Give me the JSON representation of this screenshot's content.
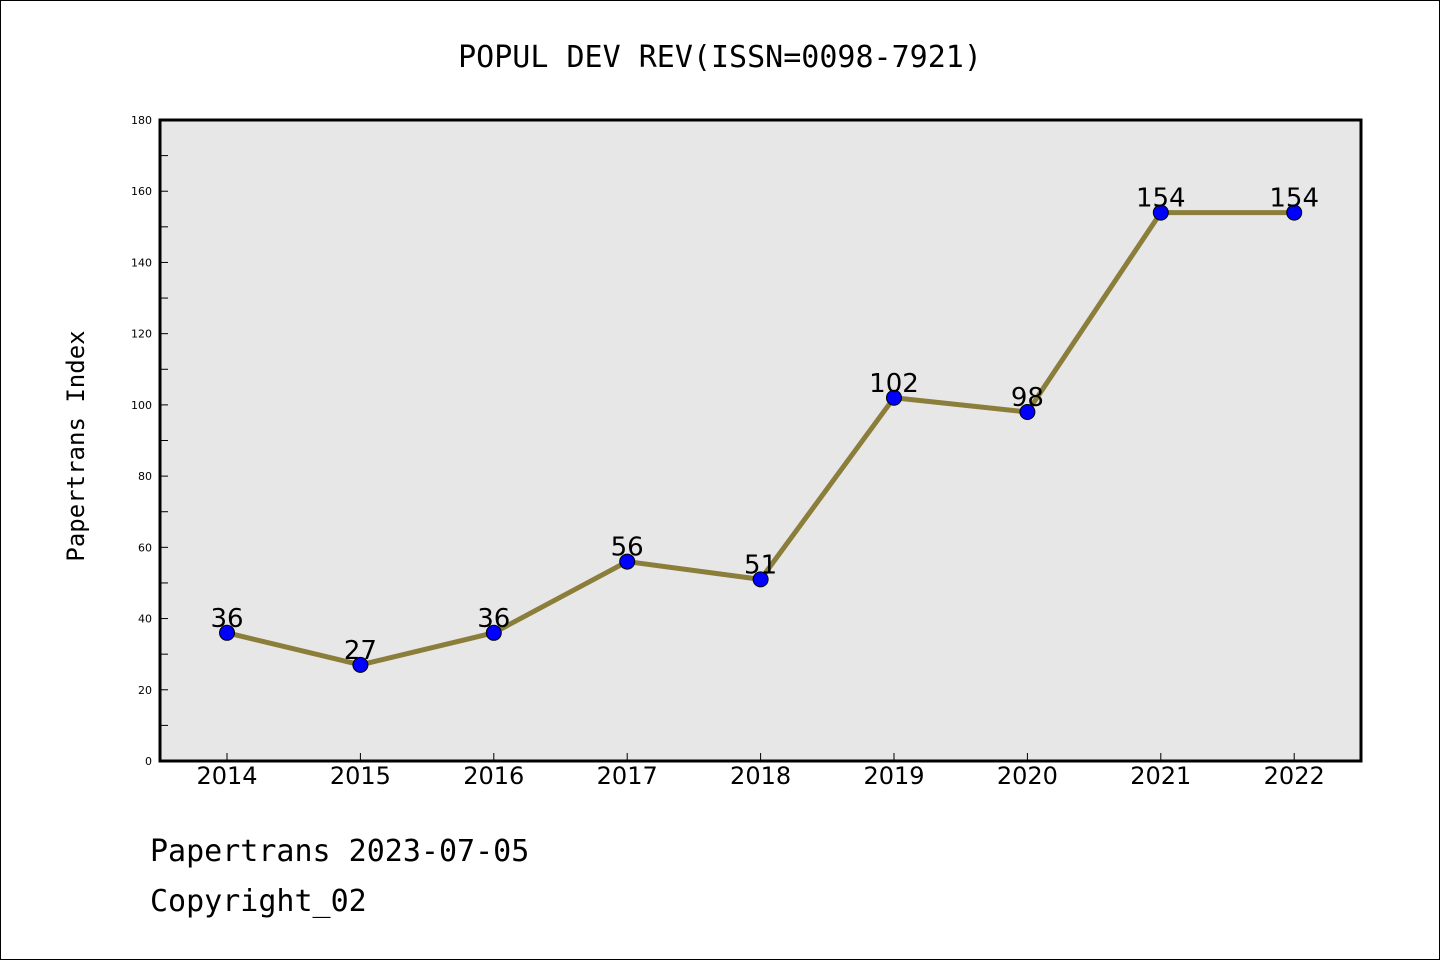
{
  "chart_data": {
    "type": "line",
    "title": "POPUL DEV REV(ISSN=0098-7921)",
    "xlabel": "",
    "ylabel": "Papertrans Index",
    "x": [
      "2014",
      "2015",
      "2016",
      "2017",
      "2018",
      "2019",
      "2020",
      "2021",
      "2022"
    ],
    "series": [
      {
        "values": [
          36,
          27,
          36,
          56,
          51,
          102,
          98,
          154,
          154
        ]
      }
    ],
    "ylim": [
      0,
      180
    ],
    "yticks": [
      0,
      20,
      40,
      60,
      80,
      100,
      120,
      140,
      160,
      180
    ],
    "grid": false,
    "legend": "none",
    "colors": {
      "line": "#8B7D3A",
      "marker": "#0000FF",
      "plot_background": "#E7E7E7",
      "axes": "#000000"
    }
  },
  "footer": {
    "line1": "Papertrans 2023-07-05",
    "line2": "Copyright_02"
  }
}
